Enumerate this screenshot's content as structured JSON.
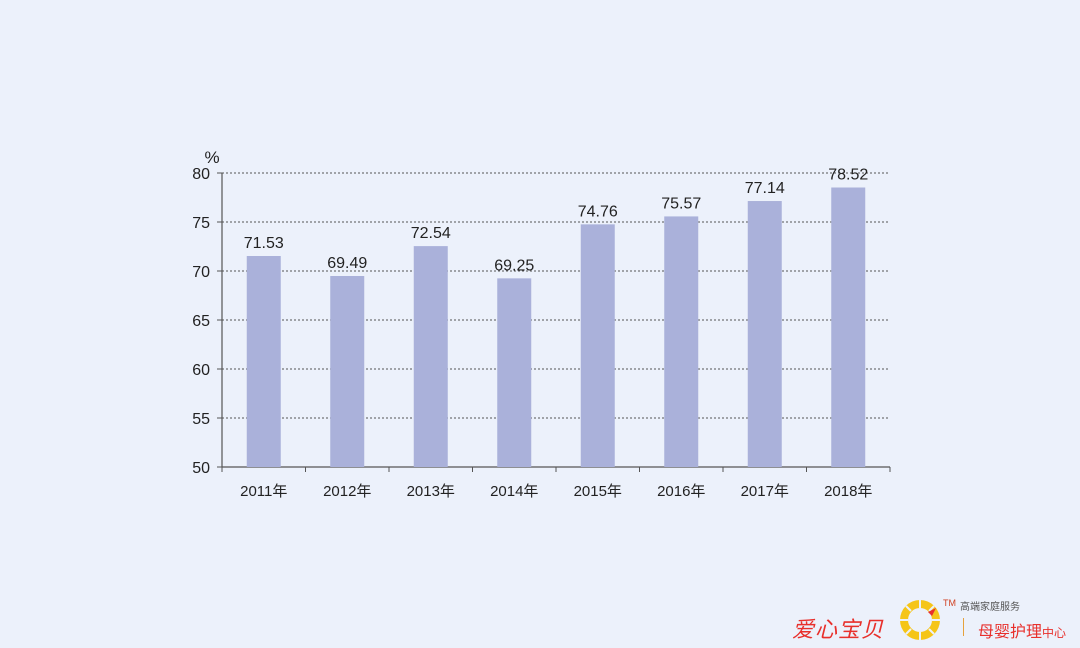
{
  "chart_data": {
    "type": "bar",
    "categories": [
      "2011年",
      "2012年",
      "2013年",
      "2014年",
      "2015年",
      "2016年",
      "2017年",
      "2018年"
    ],
    "values": [
      71.53,
      69.49,
      72.54,
      69.25,
      74.76,
      75.57,
      77.14,
      78.52
    ],
    "value_labels": [
      "71.53",
      "69.49",
      "72.54",
      "69.25",
      "74.76",
      "75.57",
      "77.14",
      "78.52"
    ],
    "unit": "%",
    "ylim": [
      50,
      80
    ],
    "yticks": [
      50,
      55,
      60,
      65,
      70,
      75,
      80
    ],
    "grid": true,
    "colors": {
      "bar": "#aab1da",
      "grid": "#555555",
      "axis": "#555555",
      "background": "#ecf1fb"
    }
  },
  "watermark": {
    "brand": "爱心宝贝",
    "tm": "TM",
    "service": "高端家庭服务",
    "center_main": "母婴护理",
    "center_small": "中心",
    "logo_icon": "sun-swirl-icon",
    "colors": {
      "red": "#e8302c",
      "yellow": "#f5c518",
      "orange": "#e6a23c"
    }
  }
}
